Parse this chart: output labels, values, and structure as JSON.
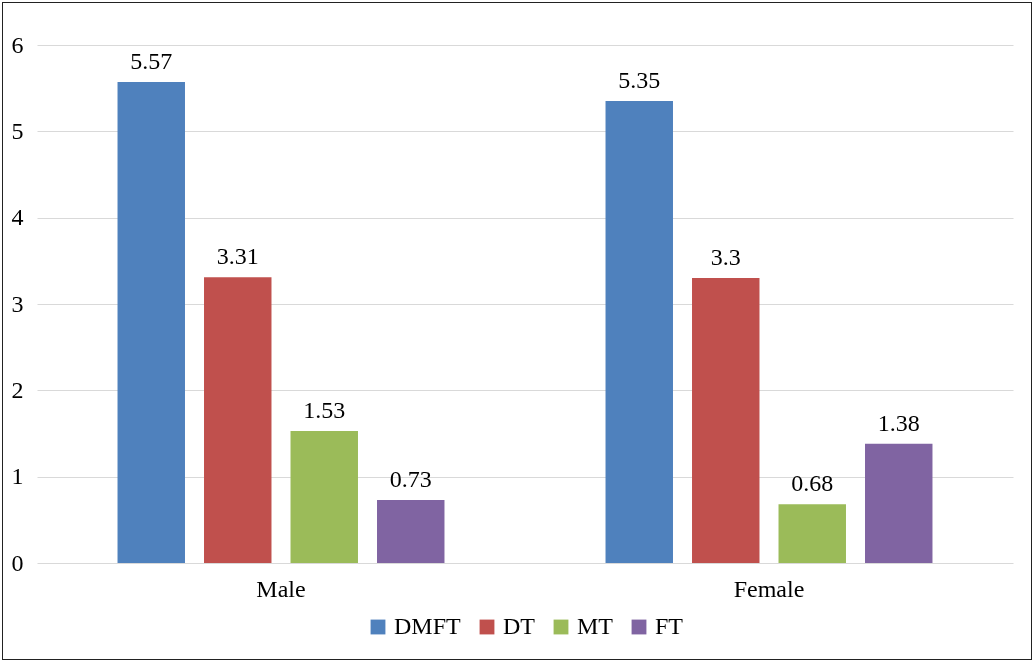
{
  "chart_data": {
    "type": "bar",
    "categories": [
      "Male",
      "Female"
    ],
    "series": [
      {
        "name": "DMFT",
        "color": "#4f81bd",
        "values": [
          5.57,
          5.35
        ]
      },
      {
        "name": "DT",
        "color": "#c0504d",
        "values": [
          3.31,
          3.3
        ]
      },
      {
        "name": "MT",
        "color": "#9bbb59",
        "values": [
          1.53,
          0.68
        ]
      },
      {
        "name": "FT",
        "color": "#8064a2",
        "values": [
          0.73,
          1.38
        ]
      }
    ],
    "ylim": [
      0,
      6
    ],
    "yticks": [
      0,
      1,
      2,
      3,
      4,
      5,
      6
    ],
    "grid": "y",
    "legend": "bottom",
    "data_labels": true
  }
}
